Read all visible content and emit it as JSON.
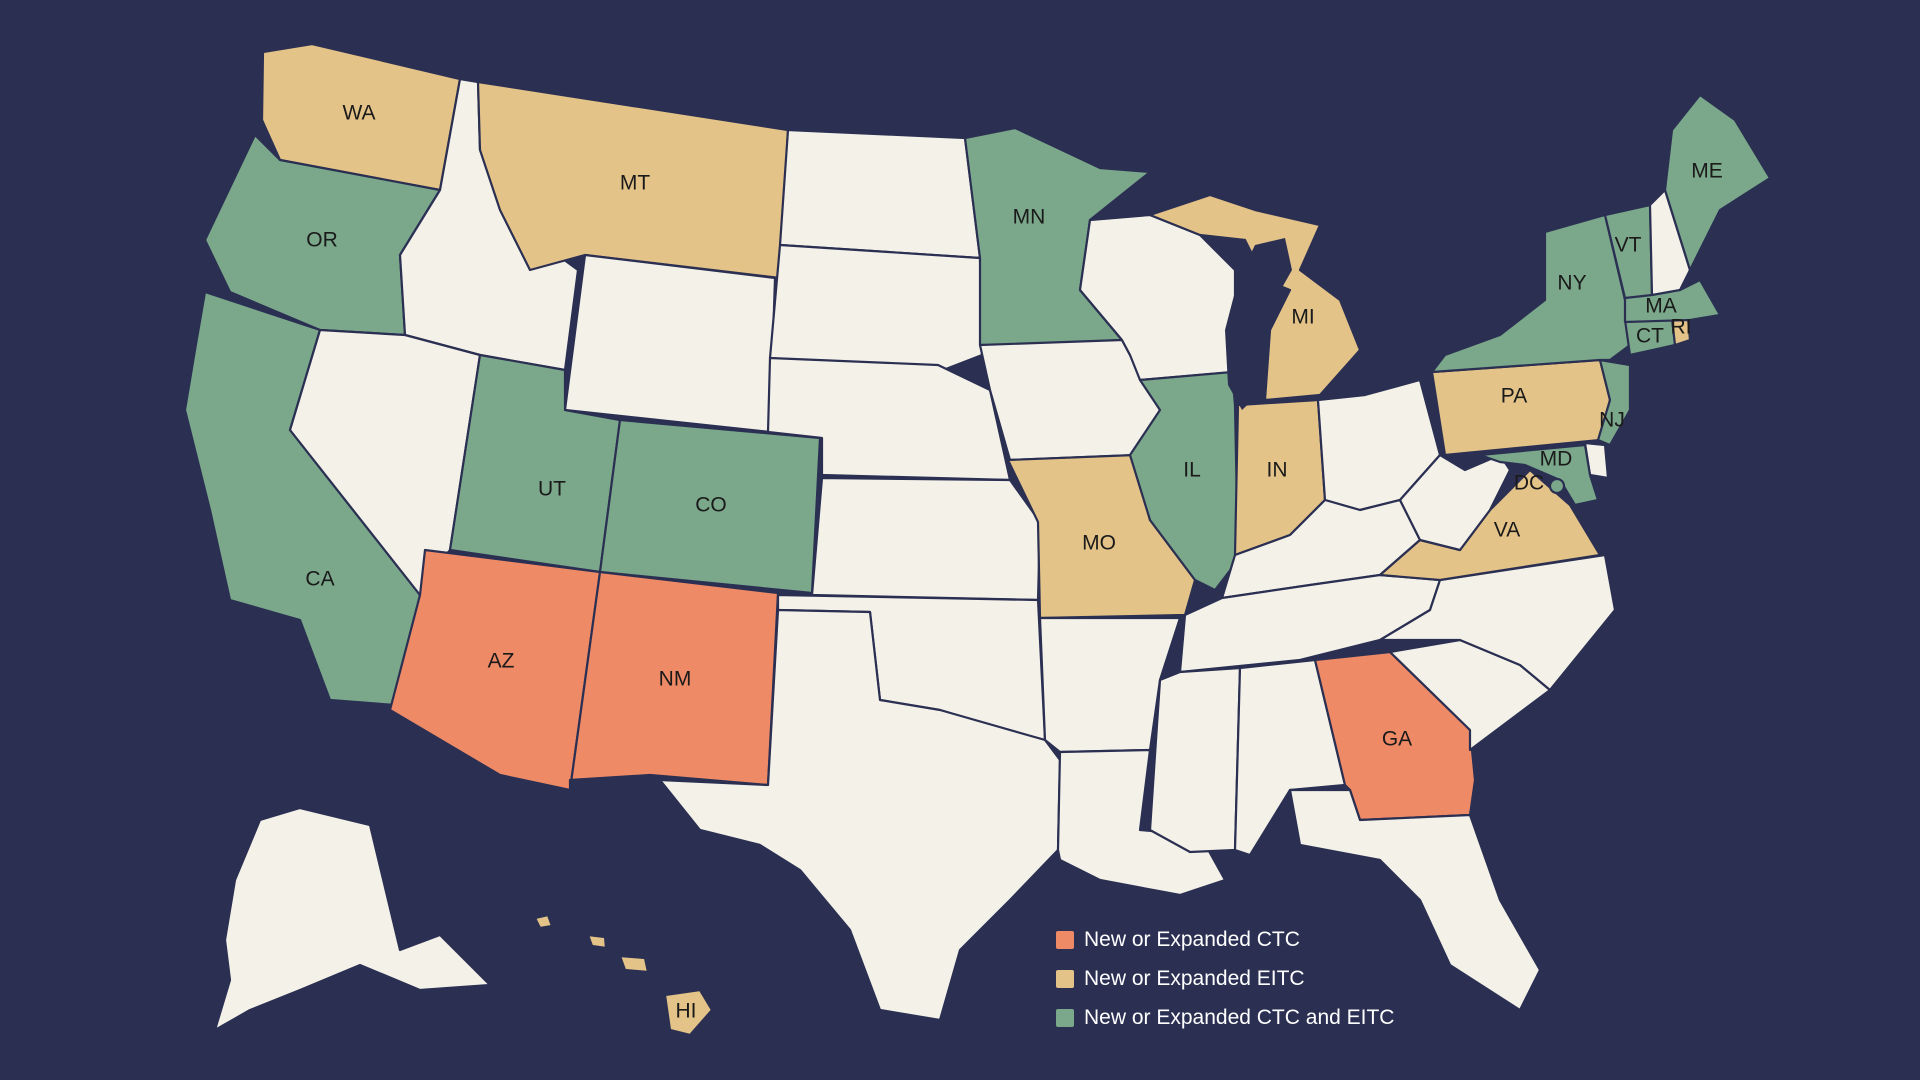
{
  "colors": {
    "background": "#2b3053",
    "none": "#f4f2e8",
    "ctc": "#ef8a67",
    "eitc": "#e4c388",
    "both": "#7ba88b",
    "border": "#2b3053"
  },
  "legend": {
    "items": [
      {
        "key": "ctc",
        "label": "New or Expanded CTC",
        "color": "#ef8a67"
      },
      {
        "key": "eitc",
        "label": "New or Expanded EITC",
        "color": "#e4c388"
      },
      {
        "key": "both",
        "label": "New or Expanded CTC and EITC",
        "color": "#7ba88b"
      }
    ]
  },
  "states": {
    "WA": {
      "label": "WA",
      "status": "eitc"
    },
    "OR": {
      "label": "OR",
      "status": "both"
    },
    "CA": {
      "label": "CA",
      "status": "both"
    },
    "ID": {
      "label": "",
      "status": "none"
    },
    "NV": {
      "label": "",
      "status": "none"
    },
    "MT": {
      "label": "MT",
      "status": "eitc"
    },
    "WY": {
      "label": "",
      "status": "none"
    },
    "UT": {
      "label": "UT",
      "status": "both"
    },
    "CO": {
      "label": "CO",
      "status": "both"
    },
    "AZ": {
      "label": "AZ",
      "status": "ctc"
    },
    "NM": {
      "label": "NM",
      "status": "ctc"
    },
    "ND": {
      "label": "",
      "status": "none"
    },
    "SD": {
      "label": "",
      "status": "none"
    },
    "NE": {
      "label": "",
      "status": "none"
    },
    "KS": {
      "label": "",
      "status": "none"
    },
    "OK": {
      "label": "",
      "status": "none"
    },
    "TX": {
      "label": "",
      "status": "none"
    },
    "MN": {
      "label": "MN",
      "status": "both"
    },
    "IA": {
      "label": "",
      "status": "none"
    },
    "MO": {
      "label": "MO",
      "status": "eitc"
    },
    "AR": {
      "label": "",
      "status": "none"
    },
    "LA": {
      "label": "",
      "status": "none"
    },
    "WI": {
      "label": "",
      "status": "none"
    },
    "IL": {
      "label": "IL",
      "status": "both"
    },
    "MI": {
      "label": "MI",
      "status": "eitc"
    },
    "IN": {
      "label": "IN",
      "status": "eitc"
    },
    "OH": {
      "label": "",
      "status": "none"
    },
    "KY": {
      "label": "",
      "status": "none"
    },
    "TN": {
      "label": "",
      "status": "none"
    },
    "MS": {
      "label": "",
      "status": "none"
    },
    "AL": {
      "label": "",
      "status": "none"
    },
    "GA": {
      "label": "GA",
      "status": "ctc"
    },
    "FL": {
      "label": "",
      "status": "none"
    },
    "SC": {
      "label": "",
      "status": "none"
    },
    "NC": {
      "label": "",
      "status": "none"
    },
    "VA": {
      "label": "VA",
      "status": "eitc"
    },
    "WV": {
      "label": "",
      "status": "none"
    },
    "PA": {
      "label": "PA",
      "status": "eitc"
    },
    "NY": {
      "label": "NY",
      "status": "both"
    },
    "NJ": {
      "label": "NJ",
      "status": "both"
    },
    "DE": {
      "label": "",
      "status": "none"
    },
    "MD": {
      "label": "MD",
      "status": "both"
    },
    "DC": {
      "label": "DC",
      "status": "both"
    },
    "CT": {
      "label": "CT",
      "status": "both"
    },
    "RI": {
      "label": "RI",
      "status": "eitc"
    },
    "MA": {
      "label": "MA",
      "status": "both"
    },
    "VT": {
      "label": "VT",
      "status": "both"
    },
    "NH": {
      "label": "",
      "status": "none"
    },
    "ME": {
      "label": "ME",
      "status": "both"
    },
    "AK": {
      "label": "",
      "status": "none"
    },
    "HI": {
      "label": "HI",
      "status": "eitc"
    }
  }
}
